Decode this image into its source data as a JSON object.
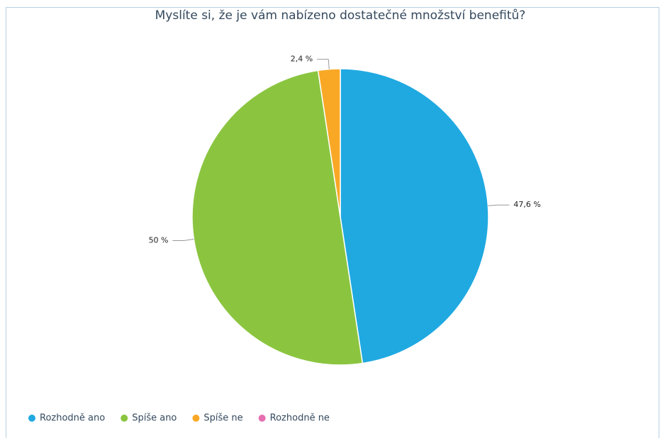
{
  "chart_data": {
    "type": "pie",
    "title": "Myslíte si, že je vám nabízeno dostatečné množství benefitů?",
    "categories": [
      "Rozhodně ano",
      "Spíše ano",
      "Spíše ne",
      "Rozhodně ne"
    ],
    "values": [
      47.6,
      50,
      2.4,
      0
    ],
    "value_labels": [
      "47,6 %",
      "50 %",
      "2,4 %",
      null
    ],
    "colors": [
      "#20a9e1",
      "#8bc540",
      "#f9a825",
      "#e56fb0"
    ],
    "legend": "bottom-left"
  }
}
